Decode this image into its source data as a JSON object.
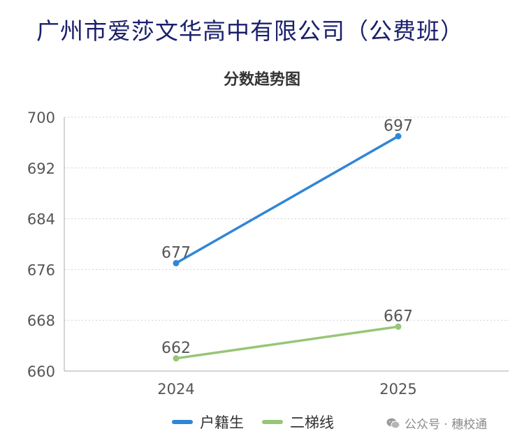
{
  "page_title": "广州市爱莎文华高中有限公司（公费班）",
  "watermark": {
    "text": "公众号 · 穗校通",
    "icon": "wechat-icon"
  },
  "chart_data": {
    "type": "line",
    "title": "分数趋势图",
    "xlabel": "",
    "ylabel": "",
    "categories": [
      "2024",
      "2025"
    ],
    "series": [
      {
        "name": "户籍生",
        "values": [
          677,
          697
        ],
        "color": "#2f86d6"
      },
      {
        "name": "二梯线",
        "values": [
          662,
          667
        ],
        "color": "#97c677"
      }
    ],
    "ylim": [
      660,
      700
    ],
    "yticks": [
      "660",
      "668",
      "676",
      "684",
      "692",
      "700"
    ],
    "grid": true,
    "legend_position": "bottom"
  }
}
